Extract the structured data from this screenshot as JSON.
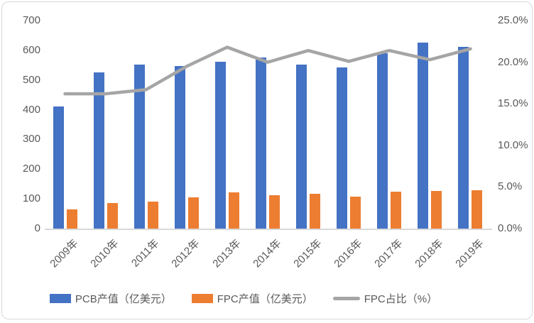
{
  "chart_data": {
    "type": "combo",
    "subtypes": [
      "bar",
      "bar",
      "line"
    ],
    "title": "",
    "categories": [
      "2009年",
      "2010年",
      "2011年",
      "2012年",
      "2013年",
      "2014年",
      "2015年",
      "2016年",
      "2017年",
      "2018年",
      "2019年"
    ],
    "series": [
      {
        "name": "PCB产值（亿美元）",
        "type": "bar",
        "axis": "left",
        "color": "#4472C4",
        "values": [
          412,
          525,
          553,
          548,
          562,
          575,
          551,
          542,
          590,
          625,
          612
        ]
      },
      {
        "name": "FPC产值（亿美元）",
        "type": "bar",
        "axis": "left",
        "color": "#ED7D31",
        "values": [
          65,
          85,
          92,
          105,
          122,
          112,
          118,
          108,
          124,
          127,
          130
        ]
      },
      {
        "name": "FPC占比（%）",
        "type": "line",
        "axis": "right",
        "color": "#A5A5A5",
        "values": [
          16.2,
          16.2,
          16.7,
          19.5,
          21.8,
          20.0,
          21.4,
          20.1,
          21.4,
          20.3,
          21.6
        ]
      }
    ],
    "left_axis": {
      "min": 0,
      "max": 700,
      "step": 100,
      "tick_labels": [
        "0",
        "100",
        "200",
        "300",
        "400",
        "500",
        "600",
        "700"
      ]
    },
    "right_axis": {
      "min": 0,
      "max": 25,
      "step": 5,
      "tick_labels": [
        "0.0%",
        "5.0%",
        "10.0%",
        "15.0%",
        "20.0%",
        "25.0%"
      ]
    },
    "grid": false,
    "legend_position": "bottom"
  },
  "colors": {
    "pcb_bar": "#4472C4",
    "fpc_bar": "#ED7D31",
    "ratio_line": "#A5A5A5",
    "axis_text": "#595959",
    "axis_line": "#D9D9D9",
    "frame_border": "#D9D9D9",
    "background": "#FFFFFF"
  }
}
